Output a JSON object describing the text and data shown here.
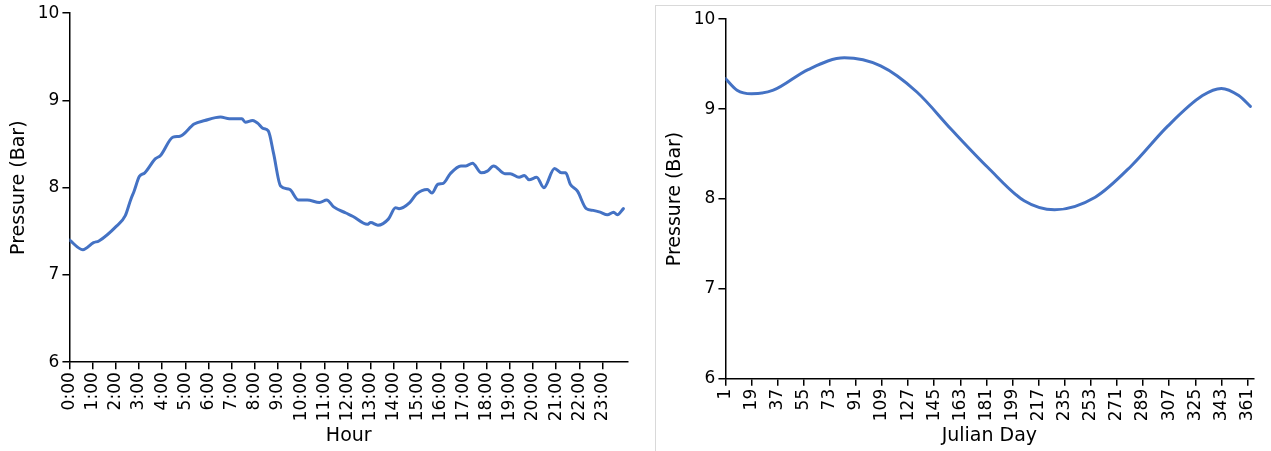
{
  "chart_data": [
    {
      "type": "line",
      "xlabel": "Hour",
      "ylabel": "Pressure (Bar)",
      "xlim": [
        0,
        24.1
      ],
      "ylim": [
        6,
        10
      ],
      "yticks": [
        6,
        7,
        8,
        9,
        10
      ],
      "xticks": [
        {
          "value": 0,
          "label": "0:00"
        },
        {
          "value": 1,
          "label": "1:00"
        },
        {
          "value": 2,
          "label": "2:00"
        },
        {
          "value": 3,
          "label": "3:00"
        },
        {
          "value": 4,
          "label": "4:00"
        },
        {
          "value": 5,
          "label": "5:00"
        },
        {
          "value": 6,
          "label": "6:00"
        },
        {
          "value": 7,
          "label": "7:00"
        },
        {
          "value": 8,
          "label": "8:00"
        },
        {
          "value": 9,
          "label": "9:00"
        },
        {
          "value": 10,
          "label": "10:00"
        },
        {
          "value": 11,
          "label": "11:00"
        },
        {
          "value": 12,
          "label": "12:00"
        },
        {
          "value": 13,
          "label": "13:00"
        },
        {
          "value": 14,
          "label": "14:00"
        },
        {
          "value": 15,
          "label": "15:00"
        },
        {
          "value": 16,
          "label": "16:00"
        },
        {
          "value": 17,
          "label": "17:00"
        },
        {
          "value": 18,
          "label": "18:00"
        },
        {
          "value": 19,
          "label": "19:00"
        },
        {
          "value": 20,
          "label": "20:00"
        },
        {
          "value": 21,
          "label": "21:00"
        },
        {
          "value": 22,
          "label": "22:00"
        },
        {
          "value": 23,
          "label": "23:00"
        }
      ],
      "series": [
        {
          "color": "#4472c4",
          "x": [
            0,
            0.58,
            1.04,
            1.27,
            2.03,
            2.41,
            2.64,
            2.79,
            3.02,
            3.25,
            3.7,
            3.93,
            4.47,
            4.77,
            5.38,
            5.84,
            6.52,
            6.9,
            7.44,
            7.59,
            7.9,
            8.12,
            8.35,
            8.58,
            8.81,
            9.11,
            9.5,
            9.88,
            10.26,
            10.79,
            11.1,
            11.4,
            11.93,
            12.24,
            12.85,
            13.0,
            13.31,
            13.76,
            14.07,
            14.22,
            14.68,
            14.98,
            15.44,
            15.64,
            15.9,
            16.13,
            16.43,
            16.89,
            17.11,
            17.39,
            17.77,
            18.03,
            18.3,
            18.79,
            19.02,
            19.4,
            19.63,
            19.83,
            20.16,
            20.47,
            20.93,
            21.23,
            21.41,
            21.61,
            21.92,
            22.3,
            22.6,
            22.9,
            23.21,
            23.48,
            23.64,
            23.9
          ],
          "values": [
            7.4,
            7.29,
            7.37,
            7.39,
            7.56,
            7.68,
            7.86,
            7.96,
            8.13,
            8.17,
            8.33,
            8.37,
            8.58,
            8.59,
            8.73,
            8.77,
            8.81,
            8.79,
            8.79,
            8.75,
            8.77,
            8.74,
            8.68,
            8.65,
            8.39,
            8.02,
            7.98,
            7.86,
            7.86,
            7.83,
            7.86,
            7.78,
            7.71,
            7.67,
            7.58,
            7.6,
            7.57,
            7.64,
            7.77,
            7.76,
            7.83,
            7.93,
            7.98,
            7.94,
            8.04,
            8.05,
            8.16,
            8.25,
            8.25,
            8.28,
            8.17,
            8.19,
            8.25,
            8.16,
            8.16,
            8.12,
            8.14,
            8.09,
            8.12,
            8.0,
            8.22,
            8.17,
            8.17,
            8.04,
            7.96,
            7.76,
            7.74,
            7.72,
            7.69,
            7.72,
            7.69,
            7.76
          ]
        }
      ]
    },
    {
      "type": "line",
      "xlabel": "Julian Day",
      "ylabel": "Pressure (Bar)",
      "xlim": [
        1,
        365
      ],
      "ylim": [
        6,
        10
      ],
      "yticks": [
        6,
        7,
        8,
        9,
        10
      ],
      "xticks": [
        1,
        19,
        37,
        55,
        73,
        91,
        109,
        127,
        145,
        163,
        181,
        199,
        217,
        235,
        253,
        271,
        289,
        307,
        325,
        343,
        361
      ],
      "series": [
        {
          "color": "#4472c4",
          "x": [
            1,
            9,
            19,
            34,
            58,
            83,
            108,
            133,
            157,
            182,
            207,
            228,
            256,
            281,
            306,
            330,
            343,
            355,
            363
          ],
          "values": [
            9.34,
            9.21,
            9.17,
            9.21,
            9.44,
            9.57,
            9.48,
            9.19,
            8.77,
            8.35,
            7.98,
            7.88,
            8.02,
            8.37,
            8.81,
            9.15,
            9.23,
            9.15,
            9.03
          ]
        }
      ]
    }
  ]
}
